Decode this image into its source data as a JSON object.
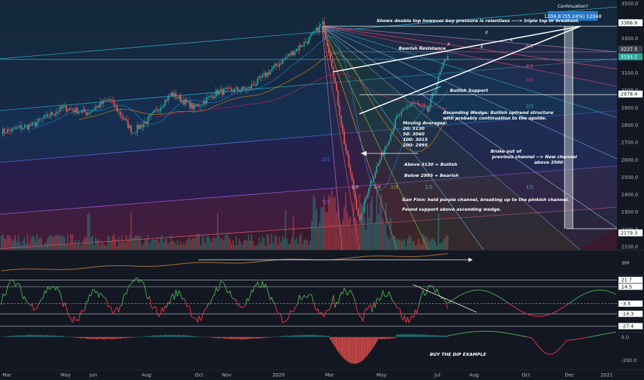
{
  "chart_data": {
    "type": "candlestick",
    "instrument": "S&P 500",
    "x_axis_labels": [
      "Mar",
      "May",
      "Jun",
      "Aug",
      "Oct",
      "Nov",
      "2020",
      "Mar",
      "May",
      "Jul",
      "Aug",
      "Oct",
      "Dec",
      "2021"
    ],
    "price_axis": {
      "ticks": [
        3500,
        3400,
        3300,
        3200,
        3100,
        3000,
        2900,
        2800,
        2700,
        2600,
        2500,
        2400,
        2300,
        2200,
        2100
      ],
      "ylim": [
        2080,
        3520
      ]
    },
    "price_tags": [
      {
        "label": "3388.8",
        "value": 3388.8,
        "style": "white"
      },
      {
        "label": "3237.5",
        "value": 3237.5,
        "style": "dark"
      },
      {
        "label": "3193.2",
        "value": 3193.2,
        "style": "teal"
      },
      {
        "label": "2978.4",
        "value": 2978.4,
        "style": "white"
      },
      {
        "label": "2179.3",
        "value": 2179.3,
        "style": "white"
      }
    ],
    "moving_averages": {
      "20": 3130,
      "50": 3060,
      "100": 3015,
      "200": 2995
    },
    "measurement": {
      "title": "Continuation?",
      "label": "1204.8 (55.24%) 12048"
    },
    "annotations": {
      "double_top": "Shows double top however buy pressure is relentless ----> triple top or breakout.",
      "bearish_resistance": "Bearish Resistance",
      "bullish_support": "Bullish Support",
      "wedge_1": "Ascending Wedge: Bullish uptrend structure",
      "wedge_2": "with probably continuation to the upside.",
      "ma_title": "Moving Averages:",
      "ma_20": "20: 3130",
      "ma_50": "50: 3060",
      "ma_100": "100: 3015",
      "ma_200": "200: 2995",
      "broke_1": "Broke out of",
      "broke_2": "previous channel --> New channel",
      "broke_3": "above 3500",
      "above": "Above 3130 = Bullish",
      "below": "Below 2995 = Bearish",
      "gann": "Gan Finn: held purple channel, breaking up to the pinkish channel.",
      "found": "Found support above ascending wedge.",
      "dip": "BUY THE DIP EXAMPLE"
    },
    "fan_labels": [
      "8/1",
      "4/1",
      "3/1",
      "2/1",
      "1/1",
      "2/1",
      "3/1",
      "1/8",
      "1/4",
      "1/3",
      "1/2"
    ],
    "x_marks": [
      "X",
      "X",
      "X",
      "X"
    ],
    "volume_axis": {
      "label": "8M"
    },
    "rsi_panel": {
      "levels": [
        {
          "label": "21.7",
          "value": 21.7
        },
        {
          "label": "14.5",
          "value": 14.5
        },
        {
          "label": "-3.5",
          "value": -3.5
        },
        {
          "label": "-14.3",
          "value": -14.3
        },
        {
          "label": "-27.4",
          "value": -27.4
        }
      ]
    },
    "macd_panel": {
      "ticks": [
        {
          "label": "0.0",
          "value": 0
        },
        {
          "label": "-200.0",
          "value": -200
        }
      ]
    }
  }
}
